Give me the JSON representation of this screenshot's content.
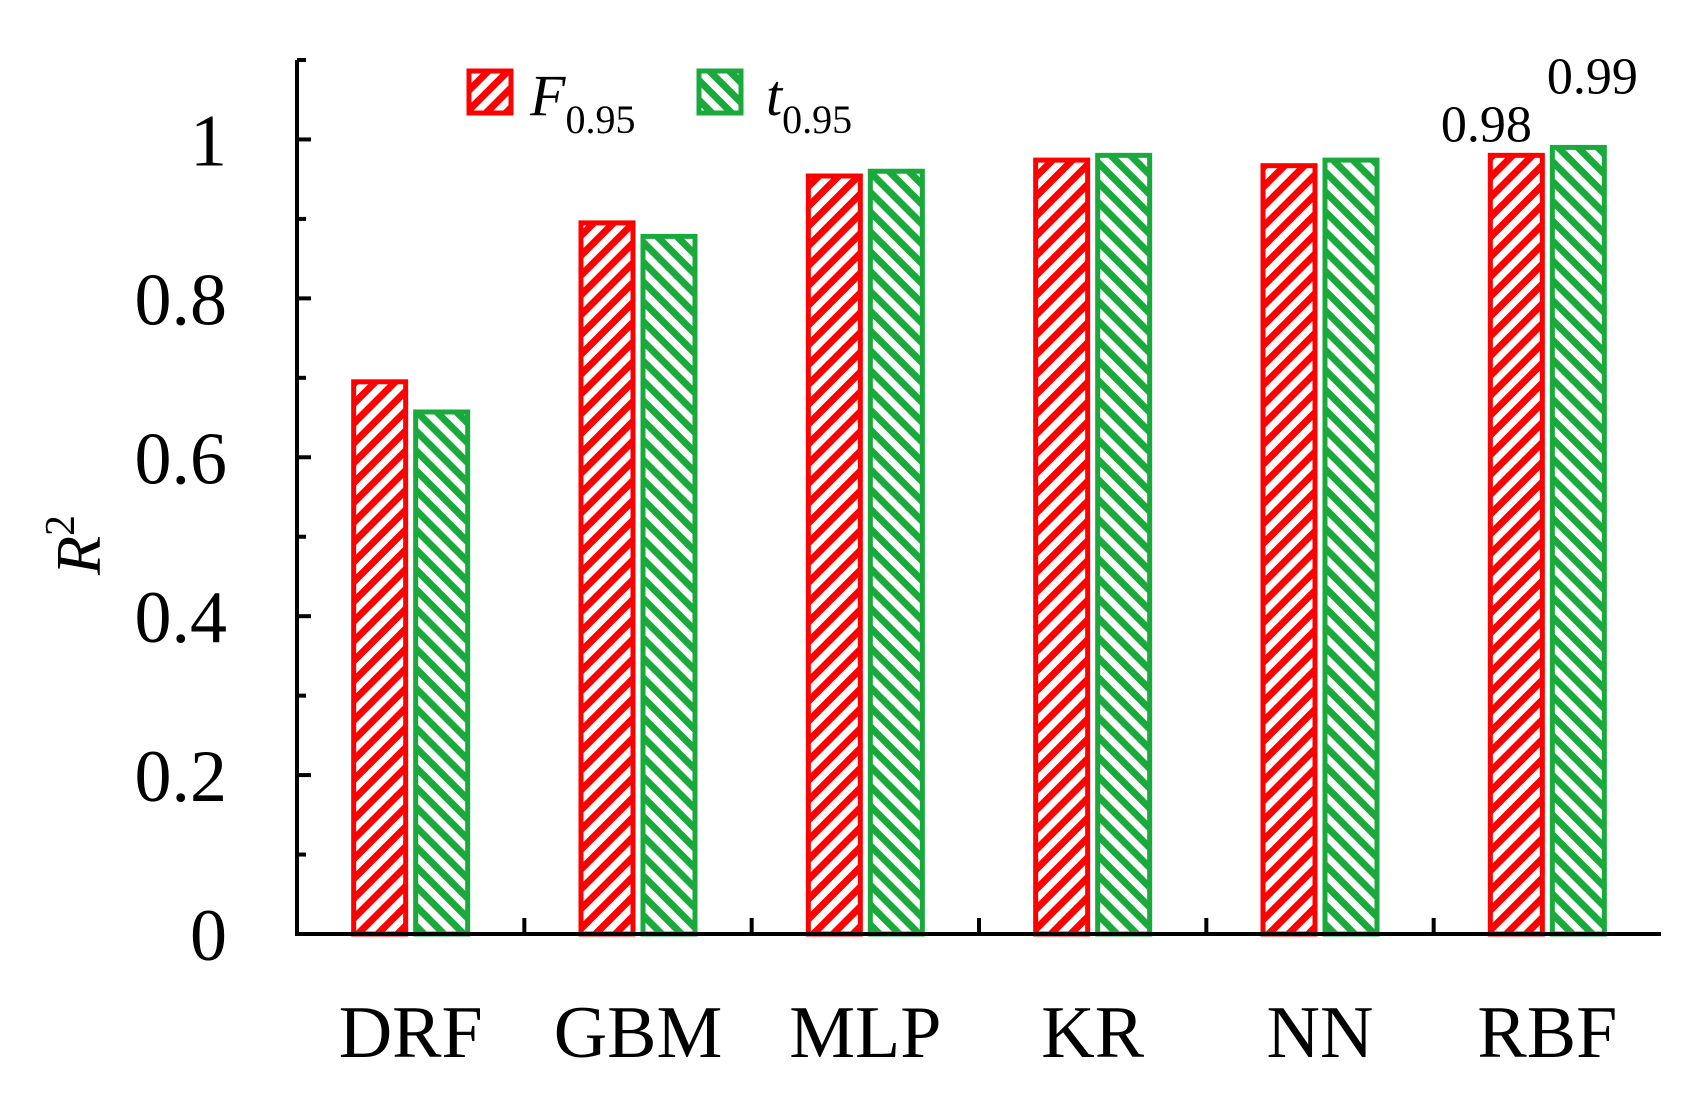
{
  "chart_data": {
    "type": "bar",
    "categories": [
      "DRF",
      "GBM",
      "MLP",
      "KR",
      "NN",
      "RBF"
    ],
    "series": [
      {
        "name": "F",
        "subscript": "0.95",
        "color": "#ff0000",
        "values": [
          0.695,
          0.895,
          0.954,
          0.974,
          0.967,
          0.98
        ]
      },
      {
        "name": "t",
        "subscript": "0.95",
        "color": "#1aaa3c",
        "values": [
          0.657,
          0.878,
          0.96,
          0.98,
          0.974,
          0.99
        ]
      }
    ],
    "data_labels": [
      {
        "series": 0,
        "category": "RBF",
        "text": "0.98"
      },
      {
        "series": 1,
        "category": "RBF",
        "text": "0.99"
      }
    ],
    "ylabel": "R",
    "ylabel_superscript": "2",
    "xlabel": "",
    "ylim": [
      0,
      1.1
    ],
    "yticks": [
      0,
      0.2,
      0.4,
      0.6,
      0.8,
      1
    ],
    "ytick_labels": [
      "0",
      "0.2",
      "0.4",
      "0.6",
      "0.8",
      "1"
    ],
    "legend_position": "top-left",
    "pattern": "hatched",
    "grid": false
  }
}
